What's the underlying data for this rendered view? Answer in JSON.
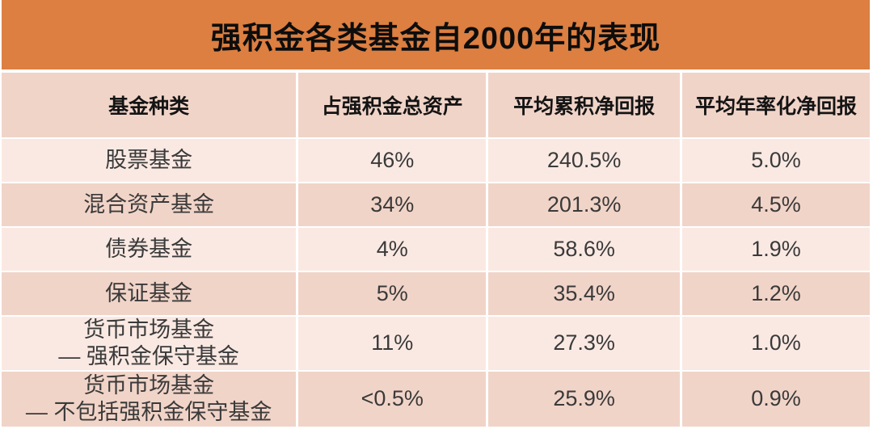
{
  "title": "强积金各类基金自2000年的表现",
  "colors": {
    "title_bar_bg": "#DC7F41",
    "title_text": "#0d0d0d",
    "header_row_bg": "#F1D4C8",
    "row_light_bg": "#FAE9E3",
    "row_dark_bg": "#F1D4C8",
    "data_text": "#3a3a3a",
    "page_bg": "#ffffff"
  },
  "table": {
    "headers": [
      "基金种类",
      "占强积金总资产",
      "平均累积净回报",
      "平均年率化净回报"
    ],
    "rows": [
      {
        "name_line1": "股票基金",
        "name_line2": "",
        "assets": "46%",
        "cumulative": "240.5%",
        "annualized": "5.0%"
      },
      {
        "name_line1": "混合资产基金",
        "name_line2": "",
        "assets": "34%",
        "cumulative": "201.3%",
        "annualized": "4.5%"
      },
      {
        "name_line1": "债券基金",
        "name_line2": "",
        "assets": "4%",
        "cumulative": "58.6%",
        "annualized": "1.9%"
      },
      {
        "name_line1": "保证基金",
        "name_line2": "",
        "assets": "5%",
        "cumulative": "35.4%",
        "annualized": "1.2%"
      },
      {
        "name_line1": "货币市场基金",
        "name_line2": "— 强积金保守基金",
        "assets": "11%",
        "cumulative": "27.3%",
        "annualized": "1.0%"
      },
      {
        "name_line1": "货币市场基金",
        "name_line2": "— 不包括强积金保守基金",
        "assets": "<0.5%",
        "cumulative": "25.9%",
        "annualized": "0.9%"
      }
    ]
  },
  "chart_data": {
    "type": "table",
    "title": "强积金各类基金自2000年的表现",
    "columns": [
      "基金种类",
      "占强积金总资产",
      "平均累积净回报",
      "平均年率化净回报"
    ],
    "rows": [
      [
        "股票基金",
        "46%",
        "240.5%",
        "5.0%"
      ],
      [
        "混合资产基金",
        "34%",
        "201.3%",
        "4.5%"
      ],
      [
        "债券基金",
        "4%",
        "58.6%",
        "1.9%"
      ],
      [
        "保证基金",
        "5%",
        "35.4%",
        "1.2%"
      ],
      [
        "货币市场基金 — 强积金保守基金",
        "11%",
        "27.3%",
        "1.0%"
      ],
      [
        "货币市场基金 — 不包括强积金保守基金",
        "<0.5%",
        "25.9%",
        "0.9%"
      ]
    ]
  }
}
